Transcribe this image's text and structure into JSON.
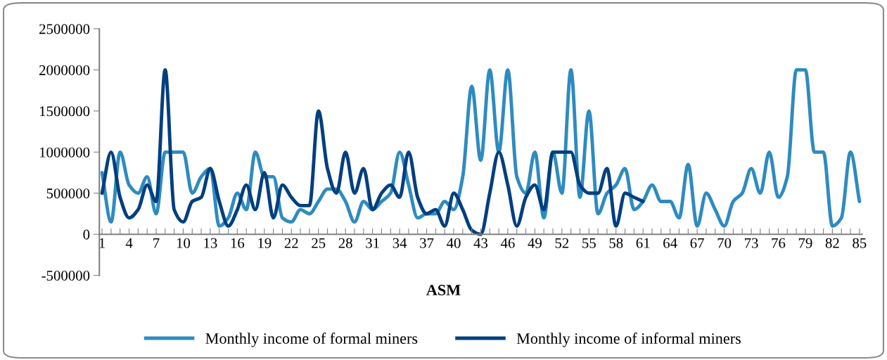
{
  "chart_data": {
    "type": "line",
    "xlabel": "ASM",
    "categories": [
      "1",
      null,
      null,
      "4",
      null,
      null,
      "7",
      null,
      null,
      "10",
      null,
      null,
      "13",
      null,
      null,
      "16",
      null,
      null,
      "19",
      null,
      null,
      "22",
      null,
      null,
      "25",
      null,
      null,
      "28",
      null,
      null,
      "31",
      null,
      null,
      "34",
      null,
      null,
      "37",
      null,
      null,
      "40",
      null,
      null,
      "43",
      null,
      null,
      "46",
      null,
      null,
      "49",
      null,
      null,
      "52",
      null,
      null,
      "55",
      null,
      null,
      "58",
      null,
      null,
      "61",
      null,
      null,
      "64",
      null,
      null,
      "67",
      null,
      null,
      "70",
      null,
      null,
      "73",
      null,
      null,
      "76",
      null,
      null,
      "79",
      null,
      null,
      "82",
      null,
      null,
      "85"
    ],
    "series": [
      {
        "name": "Monthly income of formal miners",
        "color": "#2e8bc0",
        "values": [
          750000,
          150000,
          1000000,
          600000,
          500000,
          700000,
          250000,
          1000000,
          1000000,
          1000000,
          500000,
          700000,
          800000,
          100000,
          200000,
          500000,
          300000,
          1000000,
          700000,
          700000,
          200000,
          150000,
          300000,
          250000,
          400000,
          550000,
          550000,
          400000,
          150000,
          400000,
          300000,
          400000,
          500000,
          1000000,
          600000,
          200000,
          250000,
          250000,
          400000,
          300000,
          700000,
          1800000,
          900000,
          2000000,
          1000000,
          2000000,
          700000,
          500000,
          1000000,
          200000,
          1000000,
          500000,
          2000000,
          450000,
          1500000,
          250000,
          500000,
          600000,
          800000,
          300000,
          400000,
          600000,
          400000,
          400000,
          200000,
          850000,
          100000,
          500000,
          300000,
          100000,
          400000,
          500000,
          800000,
          500000,
          1000000,
          450000,
          700000,
          2000000,
          2000000,
          1000000,
          1000000,
          100000,
          200000,
          1000000,
          400000
        ]
      },
      {
        "name": "Monthly income of informal miners",
        "color": "#003f7f",
        "values": [
          500000,
          1000000,
          450000,
          200000,
          300000,
          600000,
          400000,
          2000000,
          300000,
          150000,
          400000,
          450000,
          800000,
          400000,
          100000,
          300000,
          600000,
          300000,
          750000,
          200000,
          600000,
          450000,
          350000,
          350000,
          1500000,
          800000,
          500000,
          1000000,
          500000,
          800000,
          300000,
          500000,
          600000,
          450000,
          1000000,
          450000,
          250000,
          300000,
          100000,
          500000,
          300000,
          50000,
          0,
          500000,
          1000000,
          600000,
          100000,
          450000,
          600000,
          300000,
          1000000,
          1000000,
          1000000,
          600000,
          500000,
          500000,
          800000,
          100000,
          500000,
          450000,
          400000,
          null,
          null,
          null,
          null,
          null,
          null,
          null,
          null,
          null,
          null,
          null,
          null,
          null,
          null,
          null,
          null,
          null,
          null,
          null,
          null,
          null,
          null,
          null,
          null
        ]
      }
    ],
    "ylim": [
      -500000,
      2500000
    ],
    "yticks": [
      -500000,
      0,
      500000,
      1000000,
      1500000,
      2000000,
      2500000
    ],
    "grid": false,
    "legend": "bottom",
    "marker": "none",
    "line_style": "solid"
  }
}
